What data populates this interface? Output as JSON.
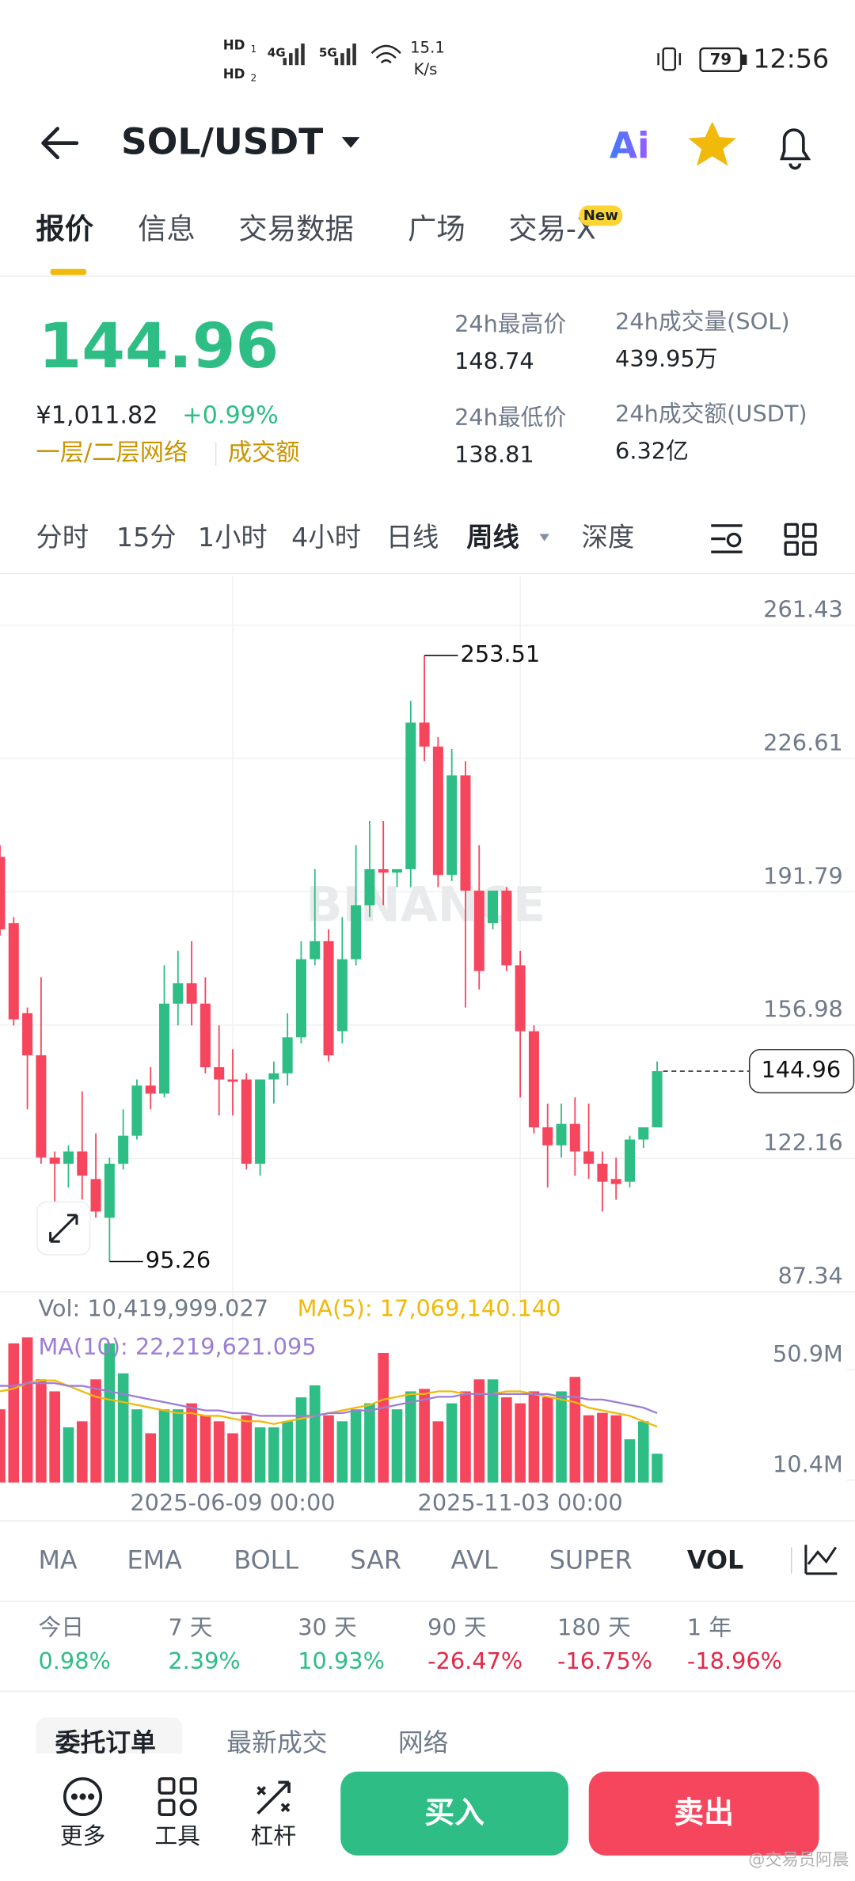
{
  "status_bar": {
    "hd": [
      "HD",
      "HD"
    ],
    "sim": [
      "1",
      "2"
    ],
    "networks": [
      "4G",
      "5G"
    ],
    "speed": "15.1",
    "speed_unit": "K/s",
    "battery": "79",
    "time": "12:56"
  },
  "header": {
    "title": "SOL/USDT",
    "ai": "Ai"
  },
  "tabs": {
    "items": [
      "报价",
      "信息",
      "交易数据",
      "广场",
      "交易-X"
    ],
    "badge": "New"
  },
  "price": {
    "last": "144.96",
    "cny": "¥1,011.82",
    "change": "+0.99%",
    "links": [
      "一层/二层网络",
      "成交额"
    ]
  },
  "stats": [
    {
      "label": "24h最高价",
      "value": "148.74"
    },
    {
      "label": "24h最低价",
      "value": "138.81"
    },
    {
      "label": "24h成交量(SOL)",
      "value": "439.95万"
    },
    {
      "label": "24h成交额(USDT)",
      "value": "6.32亿"
    }
  ],
  "intervals": {
    "items": [
      "分时",
      "15分",
      "1小时",
      "4小时",
      "日线",
      "周线",
      "深度"
    ]
  },
  "chart_data": [
    {
      "type": "candlestick",
      "watermark": "BINANCE",
      "up_color": "#2ebd85",
      "down_color": "#f6465d",
      "ylim": [
        87.34,
        261.43
      ],
      "yticks": [
        87.34,
        122.16,
        156.98,
        191.79,
        226.61,
        261.43
      ],
      "grid": true,
      "categories": [
        null,
        null,
        null,
        null,
        null,
        null,
        null,
        null,
        null,
        null,
        null,
        null,
        null,
        null,
        null,
        null,
        null,
        "2025-06-09 00:00",
        null,
        null,
        null,
        null,
        null,
        null,
        null,
        null,
        null,
        null,
        null,
        null,
        null,
        null,
        null,
        null,
        null,
        null,
        null,
        null,
        "2025-11-03 00:00",
        null,
        null,
        null,
        null,
        null,
        null,
        null,
        null,
        null,
        null
      ],
      "open": [
        200.9,
        183.6,
        160.1,
        149.1,
        122.4,
        120.8,
        124.0,
        116.8,
        106.7,
        120.8,
        128.1,
        141.2,
        139.1,
        162.6,
        167.9,
        162.6,
        146.0,
        142.8,
        142.8,
        120.8,
        142.8,
        144.4,
        153.8,
        174.2,
        178.9,
        155.4,
        174.2,
        188.3,
        197.7,
        196.8,
        197.7,
        236.0,
        229.7,
        196.2,
        222.2,
        192.1,
        183.6,
        192.1,
        172.6,
        155.4,
        130.3,
        125.6,
        131.2,
        124.0,
        120.8,
        116.8,
        116.1,
        127.1,
        130.3
      ],
      "high": [
        204.0,
        185.2,
        161.6,
        169.5,
        124.0,
        125.6,
        139.7,
        128.7,
        122.4,
        135.0,
        142.8,
        146.0,
        172.6,
        176.4,
        178.9,
        169.5,
        156.9,
        150.7,
        144.4,
        142.8,
        147.5,
        160.1,
        178.9,
        197.7,
        182.0,
        185.2,
        204.0,
        210.3,
        210.3,
        197.7,
        241.6,
        253.51,
        232.2,
        229.1,
        225.9,
        204.0,
        192.1,
        193.0,
        176.4,
        156.9,
        136.5,
        136.5,
        138.1,
        136.5,
        124.0,
        122.4,
        128.1,
        130.3,
        147.5
      ],
      "low": [
        180.4,
        156.9,
        135.0,
        120.8,
        103.6,
        114.6,
        111.4,
        106.7,
        95.26,
        119.3,
        127.1,
        135.0,
        138.1,
        156.9,
        156.9,
        144.4,
        133.4,
        133.4,
        119.3,
        117.7,
        136.5,
        141.2,
        152.2,
        172.6,
        147.5,
        152.2,
        172.6,
        185.2,
        188.3,
        193.0,
        193.0,
        225.9,
        193.0,
        194.6,
        161.6,
        166.3,
        182.0,
        171.1,
        138.1,
        128.7,
        114.6,
        122.4,
        117.7,
        116.8,
        108.3,
        111.4,
        114.6,
        124.9,
        130.3
      ],
      "close": [
        182.0,
        158.5,
        149.1,
        122.4,
        120.8,
        124.0,
        117.7,
        108.3,
        120.8,
        128.1,
        141.2,
        139.1,
        162.6,
        167.9,
        162.6,
        146.0,
        142.8,
        142.2,
        120.8,
        142.8,
        144.4,
        153.8,
        174.2,
        178.9,
        149.1,
        174.2,
        188.3,
        197.7,
        196.8,
        197.7,
        236.0,
        229.7,
        196.2,
        222.2,
        192.1,
        171.1,
        192.1,
        172.6,
        155.4,
        130.3,
        125.6,
        131.2,
        124.0,
        120.8,
        116.1,
        115.5,
        127.1,
        130.3,
        144.96
      ]
    },
    {
      "type": "bar",
      "title": "Vol: 10,419,999.027",
      "legend": [
        "MA(5): 17,069,140.140",
        "MA(10): 22,219,621.095"
      ],
      "ylim": [
        9.52,
        78.2
      ],
      "yticks": [
        {
          "value": 10.4,
          "label": "10.4M"
        },
        {
          "value": 50.9,
          "label": "50.9M"
        }
      ],
      "values": [
        36.4,
        60.6,
        62.8,
        47.4,
        43.0,
        29.8,
        32.0,
        47.4,
        60.6,
        49.6,
        36.4,
        27.6,
        36.4,
        36.4,
        38.6,
        34.2,
        32.0,
        27.6,
        34.2,
        29.8,
        29.8,
        32.0,
        40.8,
        45.2,
        34.2,
        32.0,
        36.4,
        38.6,
        57.1,
        36.4,
        43.0,
        43.9,
        32.0,
        38.6,
        43.0,
        47.4,
        47.4,
        40.8,
        38.6,
        43.0,
        40.8,
        43.0,
        48.3,
        34.2,
        35.1,
        34.2,
        25.4,
        32.0,
        20.1
      ],
      "series": [
        {
          "color": "#f0b90b",
          "values": [
            43,
            44,
            46,
            47,
            47,
            45,
            43,
            41,
            40,
            39,
            38,
            37,
            36,
            35,
            35,
            34,
            34,
            33,
            32,
            32,
            31,
            32,
            33,
            34,
            35,
            36,
            37,
            38,
            40,
            41,
            42,
            42,
            43,
            43,
            42,
            42,
            42,
            43,
            43,
            42,
            41,
            40,
            39,
            37,
            36,
            35,
            34,
            32,
            30
          ]
        },
        {
          "color": "#9c7dd4",
          "values": [
            45,
            45,
            46,
            46,
            46,
            45,
            45,
            44,
            43,
            42,
            41,
            40,
            39,
            38,
            37,
            36,
            36,
            35,
            35,
            34,
            34,
            34,
            34,
            34,
            35,
            35,
            36,
            36,
            37,
            38,
            39,
            40,
            41,
            41,
            42,
            42,
            42,
            42,
            42,
            42,
            42,
            41,
            41,
            40,
            40,
            39,
            38,
            37,
            35
          ]
        }
      ]
    }
  ],
  "indicators": {
    "items": [
      "MA",
      "EMA",
      "BOLL",
      "SAR",
      "AVL",
      "SUPER",
      "VOL"
    ]
  },
  "performance": [
    {
      "label": "今日",
      "value": "0.98%",
      "color": "#2ebd85"
    },
    {
      "label": "7 天",
      "value": "2.39%",
      "color": "#2ebd85"
    },
    {
      "label": "30 天",
      "value": "10.93%",
      "color": "#2ebd85"
    },
    {
      "label": "90 天",
      "value": "-26.47%",
      "color": "#e0294a"
    },
    {
      "label": "180 天",
      "value": "-16.75%",
      "color": "#e0294a"
    },
    {
      "label": "1 年",
      "value": "-18.96%",
      "color": "#e0294a"
    }
  ],
  "order_tabs": [
    "委托订单",
    "最新成交",
    "网络"
  ],
  "bottom_nav": {
    "items": [
      "更多",
      "工具",
      "杠杆"
    ],
    "buy": "买入",
    "sell": "卖出"
  },
  "watermark": "@交易员阿晨"
}
